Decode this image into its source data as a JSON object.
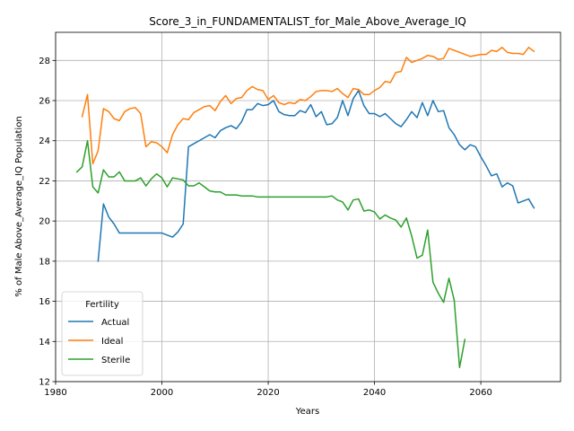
{
  "chart_data": {
    "type": "line",
    "title": "Score_3_in_FUNDAMENTALIST_for_Male_Above_Average_IQ",
    "xlabel": "Years",
    "ylabel": "% of Male Above_Average_IQ Population",
    "xlim": [
      1980,
      2075
    ],
    "ylim": [
      12,
      29.4
    ],
    "xticks": [
      1980,
      2000,
      2020,
      2040,
      2060
    ],
    "yticks": [
      12,
      14,
      16,
      18,
      20,
      22,
      24,
      26,
      28
    ],
    "grid": true,
    "legend": {
      "title": "Fertility",
      "placement": "lower-left"
    },
    "series": [
      {
        "name": "Actual",
        "color": "#1f77b4",
        "x": [
          1988,
          1989,
          1990,
          1991,
          1992,
          1993,
          1994,
          1995,
          1996,
          1997,
          1998,
          1999,
          2000,
          2001,
          2002,
          2003,
          2004,
          2005,
          2006,
          2007,
          2008,
          2009,
          2010,
          2011,
          2012,
          2013,
          2014,
          2015,
          2016,
          2017,
          2018,
          2019,
          2020,
          2021,
          2022,
          2023,
          2024,
          2025,
          2026,
          2027,
          2028,
          2029,
          2030,
          2031,
          2032,
          2033,
          2034,
          2035,
          2036,
          2037,
          2038,
          2039,
          2040,
          2041,
          2042,
          2043,
          2044,
          2045,
          2046,
          2047,
          2048,
          2049,
          2050,
          2051,
          2052,
          2053,
          2054,
          2055,
          2056,
          2057,
          2058,
          2059,
          2060,
          2061,
          2062,
          2063,
          2064,
          2065,
          2066,
          2067,
          2068,
          2069,
          2070
        ],
        "values": [
          18.0,
          20.85,
          20.2,
          19.85,
          19.4,
          19.4,
          19.4,
          19.4,
          19.4,
          19.4,
          19.4,
          19.4,
          19.4,
          19.3,
          19.2,
          19.45,
          19.85,
          23.7,
          23.85,
          24.0,
          24.15,
          24.3,
          24.15,
          24.5,
          24.65,
          24.75,
          24.6,
          24.95,
          25.55,
          25.55,
          25.85,
          25.75,
          25.8,
          26.0,
          25.45,
          25.3,
          25.25,
          25.25,
          25.5,
          25.4,
          25.8,
          25.2,
          25.45,
          24.8,
          24.85,
          25.15,
          26.0,
          25.25,
          26.1,
          26.5,
          25.75,
          25.35,
          25.35,
          25.2,
          25.35,
          25.1,
          24.85,
          24.7,
          25.05,
          25.45,
          25.15,
          25.9,
          25.25,
          26.0,
          25.45,
          25.5,
          24.65,
          24.3,
          23.8,
          23.55,
          23.8,
          23.7,
          23.2,
          22.75,
          22.25,
          22.35,
          21.7,
          21.9,
          21.75,
          20.9,
          21.0,
          21.1,
          20.65
        ]
      },
      {
        "name": "Ideal",
        "color": "#ff7f0e",
        "x": [
          1985,
          1986,
          1987,
          1988,
          1989,
          1990,
          1991,
          1992,
          1993,
          1994,
          1995,
          1996,
          1997,
          1998,
          1999,
          2000,
          2001,
          2002,
          2003,
          2004,
          2005,
          2006,
          2007,
          2008,
          2009,
          2010,
          2011,
          2012,
          2013,
          2014,
          2015,
          2016,
          2017,
          2018,
          2019,
          2020,
          2021,
          2022,
          2023,
          2024,
          2025,
          2026,
          2027,
          2028,
          2029,
          2030,
          2031,
          2032,
          2033,
          2034,
          2035,
          2036,
          2037,
          2038,
          2039,
          2040,
          2041,
          2042,
          2043,
          2044,
          2045,
          2046,
          2047,
          2048,
          2049,
          2050,
          2051,
          2052,
          2053,
          2054,
          2055,
          2056,
          2057,
          2058,
          2059,
          2060,
          2061,
          2062,
          2063,
          2064,
          2065,
          2066,
          2067,
          2068,
          2069,
          2070
        ],
        "values": [
          25.2,
          26.3,
          22.85,
          23.5,
          25.6,
          25.45,
          25.1,
          25.0,
          25.45,
          25.6,
          25.65,
          25.35,
          23.7,
          23.95,
          23.9,
          23.7,
          23.4,
          24.3,
          24.8,
          25.1,
          25.05,
          25.4,
          25.55,
          25.7,
          25.75,
          25.5,
          25.95,
          26.25,
          25.85,
          26.1,
          26.15,
          26.5,
          26.7,
          26.55,
          26.5,
          26.05,
          26.25,
          25.9,
          25.8,
          25.9,
          25.85,
          26.05,
          26.0,
          26.2,
          26.45,
          26.5,
          26.5,
          26.45,
          26.6,
          26.35,
          26.15,
          26.6,
          26.55,
          26.3,
          26.3,
          26.5,
          26.65,
          26.95,
          26.9,
          27.4,
          27.45,
          28.15,
          27.9,
          28.0,
          28.1,
          28.25,
          28.2,
          28.05,
          28.1,
          28.6,
          28.5,
          28.4,
          28.3,
          28.2,
          28.25,
          28.3,
          28.3,
          28.5,
          28.45,
          28.65,
          28.4,
          28.35,
          28.35,
          28.3,
          28.65,
          28.45
        ]
      },
      {
        "name": "Sterile",
        "color": "#2ca02c",
        "x": [
          1984,
          1985,
          1986,
          1987,
          1988,
          1989,
          1990,
          1991,
          1992,
          1993,
          1994,
          1995,
          1996,
          1997,
          1998,
          1999,
          2000,
          2001,
          2002,
          2003,
          2004,
          2005,
          2006,
          2007,
          2008,
          2009,
          2010,
          2011,
          2012,
          2013,
          2014,
          2015,
          2016,
          2017,
          2018,
          2019,
          2020,
          2021,
          2022,
          2023,
          2024,
          2025,
          2026,
          2027,
          2028,
          2029,
          2030,
          2031,
          2032,
          2033,
          2034,
          2035,
          2036,
          2037,
          2038,
          2039,
          2040,
          2041,
          2042,
          2043,
          2044,
          2045,
          2046,
          2047,
          2048,
          2049,
          2050,
          2051,
          2052,
          2053,
          2054,
          2055,
          2056,
          2057
        ],
        "values": [
          22.45,
          22.7,
          24.0,
          21.7,
          21.4,
          22.55,
          22.2,
          22.2,
          22.45,
          22.0,
          22.0,
          22.0,
          22.15,
          21.75,
          22.1,
          22.35,
          22.15,
          21.7,
          22.15,
          22.1,
          22.05,
          21.75,
          21.75,
          21.9,
          21.7,
          21.5,
          21.45,
          21.45,
          21.3,
          21.3,
          21.3,
          21.25,
          21.25,
          21.25,
          21.2,
          21.2,
          21.2,
          21.2,
          21.2,
          21.2,
          21.2,
          21.2,
          21.2,
          21.2,
          21.2,
          21.2,
          21.2,
          21.2,
          21.25,
          21.05,
          20.95,
          20.55,
          21.05,
          21.1,
          20.5,
          20.55,
          20.45,
          20.1,
          20.3,
          20.15,
          20.05,
          19.7,
          20.15,
          19.25,
          18.15,
          18.3,
          19.55,
          16.95,
          16.4,
          15.95,
          17.15,
          16.05,
          12.7,
          14.1
        ]
      }
    ]
  }
}
